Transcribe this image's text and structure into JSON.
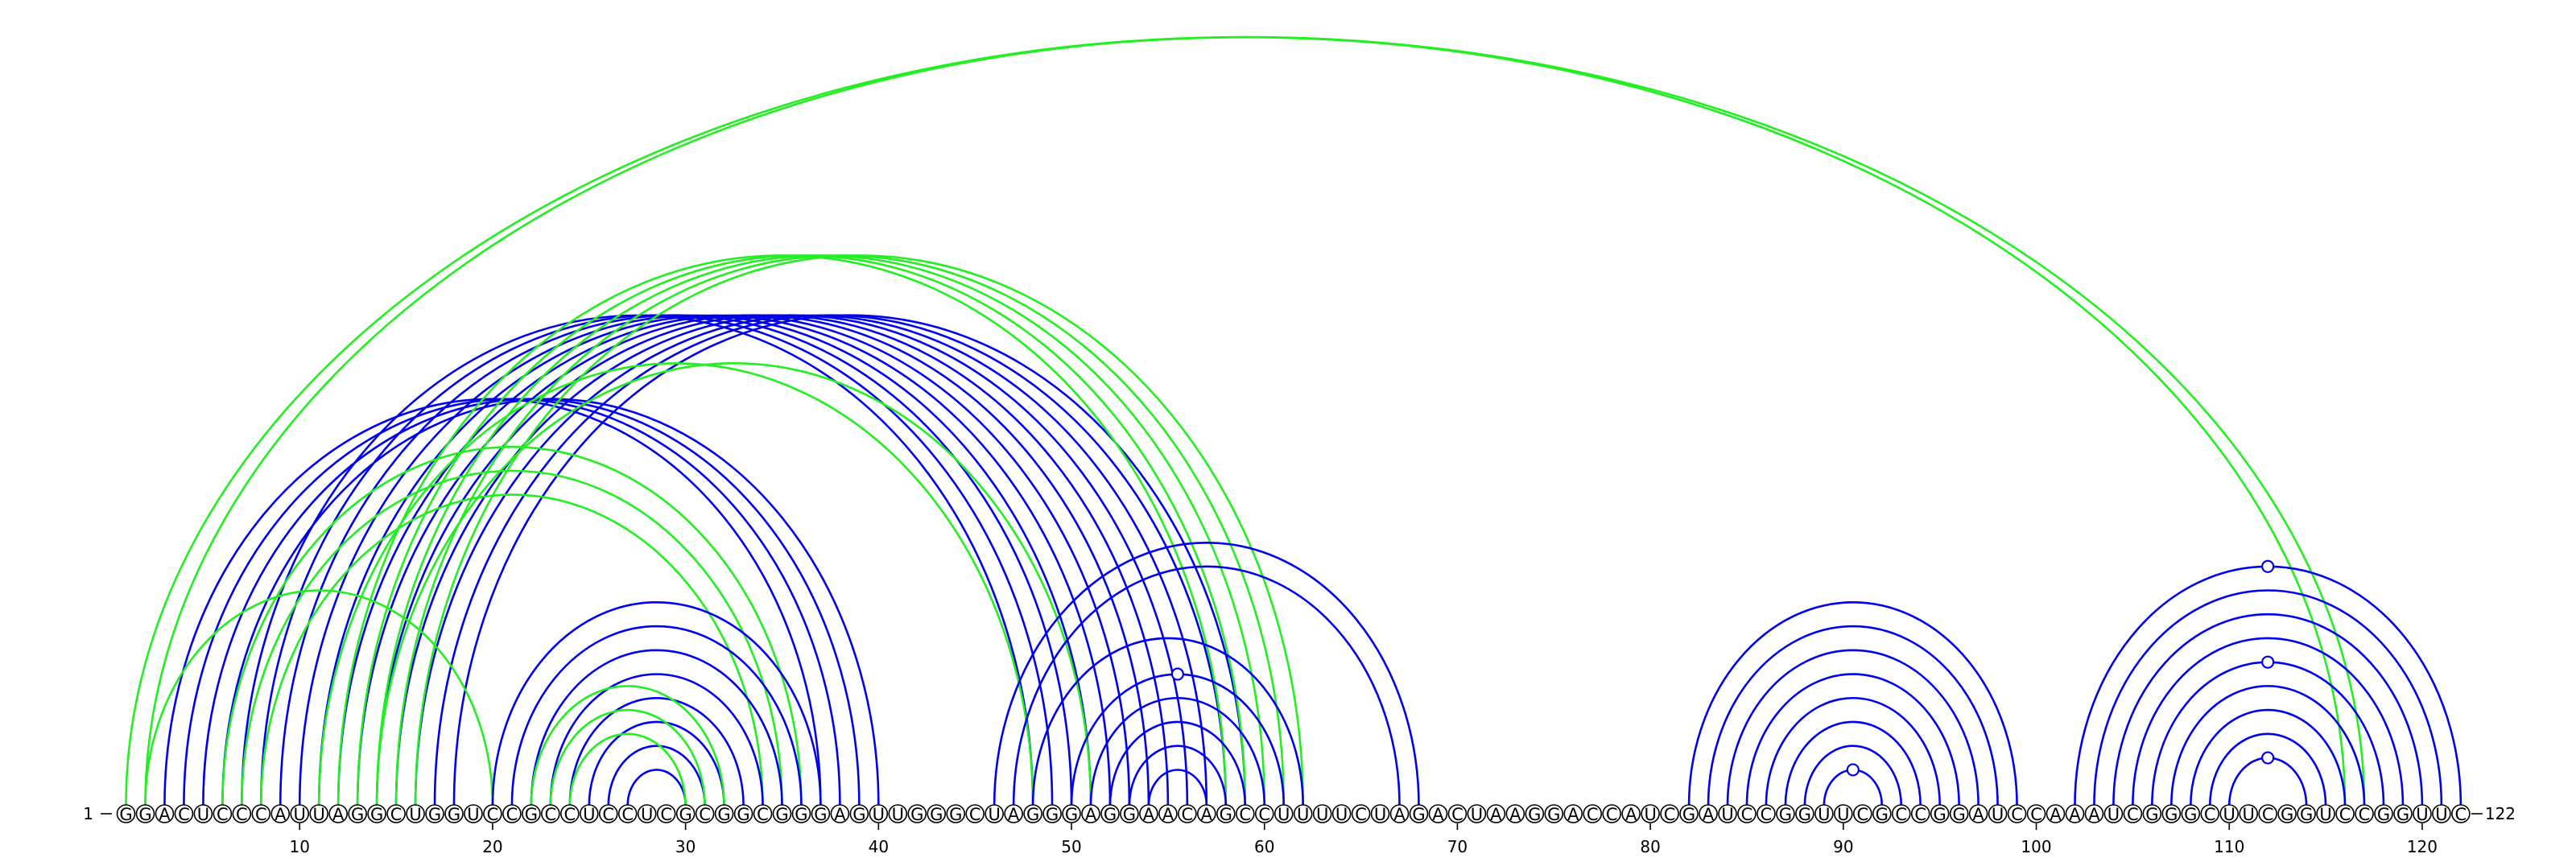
{
  "sequence": "GGACUCCCAUUAGGCUGGUCCGCCUCCUCGCGGCGGGAGUUGGGCUAGGGAGGAACAGCCUUUUCUAGACUAAGGACCAUCGAUCCGGUUCGCCGGAUCCAAAUCGGGCUUCGGUCCGGUUC",
  "start_label": "1",
  "end_label": "122",
  "tick_labels": [
    "10",
    "20",
    "30",
    "40",
    "50",
    "60",
    "70",
    "80",
    "90",
    "100",
    "110",
    "120"
  ],
  "tick_positions": [
    10,
    20,
    30,
    40,
    50,
    60,
    70,
    80,
    90,
    100,
    110,
    120
  ],
  "colors": {
    "blue": "#0000ee",
    "green": "#22ee22",
    "text": "#000000",
    "background": "#ffffff"
  },
  "arcs": [
    {
      "i": 1,
      "j": 117,
      "color": "green"
    },
    {
      "i": 2,
      "j": 116,
      "color": "green"
    },
    {
      "i": 3,
      "j": 37,
      "color": "blue"
    },
    {
      "i": 4,
      "j": 38,
      "color": "blue"
    },
    {
      "i": 5,
      "j": 39,
      "color": "blue"
    },
    {
      "i": 6,
      "j": 40,
      "color": "blue"
    },
    {
      "i": 7,
      "j": 48,
      "color": "blue"
    },
    {
      "i": 8,
      "j": 49,
      "color": "blue"
    },
    {
      "i": 9,
      "j": 50,
      "color": "blue"
    },
    {
      "i": 10,
      "j": 51,
      "color": "blue"
    },
    {
      "i": 11,
      "j": 52,
      "color": "blue"
    },
    {
      "i": 12,
      "j": 53,
      "color": "blue"
    },
    {
      "i": 13,
      "j": 54,
      "color": "blue"
    },
    {
      "i": 14,
      "j": 55,
      "color": "blue"
    },
    {
      "i": 15,
      "j": 56,
      "color": "blue"
    },
    {
      "i": 16,
      "j": 57,
      "color": "blue"
    },
    {
      "i": 17,
      "j": 58,
      "color": "blue"
    },
    {
      "i": 18,
      "j": 59,
      "color": "blue"
    },
    {
      "i": 6,
      "j": 36,
      "color": "green"
    },
    {
      "i": 7,
      "j": 35,
      "color": "green"
    },
    {
      "i": 8,
      "j": 34,
      "color": "green"
    },
    {
      "i": 2,
      "j": 20,
      "color": "green"
    },
    {
      "i": 12,
      "j": 58,
      "color": "green"
    },
    {
      "i": 13,
      "j": 59,
      "color": "green"
    },
    {
      "i": 14,
      "j": 60,
      "color": "green"
    },
    {
      "i": 15,
      "j": 61,
      "color": "green"
    },
    {
      "i": 16,
      "j": 62,
      "color": "green"
    },
    {
      "i": 11,
      "j": 48,
      "color": "green"
    },
    {
      "i": 14,
      "j": 51,
      "color": "green"
    },
    {
      "i": 20,
      "j": 37,
      "color": "blue"
    },
    {
      "i": 21,
      "j": 36,
      "color": "blue"
    },
    {
      "i": 22,
      "j": 35,
      "color": "blue"
    },
    {
      "i": 23,
      "j": 34,
      "color": "blue"
    },
    {
      "i": 24,
      "j": 33,
      "color": "blue"
    },
    {
      "i": 25,
      "j": 32,
      "color": "blue"
    },
    {
      "i": 26,
      "j": 31,
      "color": "blue"
    },
    {
      "i": 27,
      "j": 30,
      "color": "blue"
    },
    {
      "i": 22,
      "j": 32,
      "color": "green"
    },
    {
      "i": 23,
      "j": 31,
      "color": "green"
    },
    {
      "i": 24,
      "j": 30,
      "color": "green"
    },
    {
      "i": 46,
      "j": 68,
      "color": "blue"
    },
    {
      "i": 47,
      "j": 67,
      "color": "blue"
    },
    {
      "i": 48,
      "j": 62,
      "color": "blue"
    },
    {
      "i": 50,
      "j": 61,
      "color": "blue"
    },
    {
      "i": 51,
      "j": 60,
      "color": "blue"
    },
    {
      "i": 52,
      "j": 59,
      "color": "blue"
    },
    {
      "i": 53,
      "j": 58,
      "color": "blue"
    },
    {
      "i": 54,
      "j": 57,
      "color": "blue"
    },
    {
      "i": 82,
      "j": 99,
      "color": "blue"
    },
    {
      "i": 83,
      "j": 98,
      "color": "blue"
    },
    {
      "i": 84,
      "j": 97,
      "color": "blue"
    },
    {
      "i": 85,
      "j": 96,
      "color": "blue"
    },
    {
      "i": 86,
      "j": 95,
      "color": "blue"
    },
    {
      "i": 87,
      "j": 94,
      "color": "blue"
    },
    {
      "i": 88,
      "j": 93,
      "color": "blue"
    },
    {
      "i": 89,
      "j": 92,
      "color": "blue"
    },
    {
      "i": 102,
      "j": 122,
      "color": "blue"
    },
    {
      "i": 103,
      "j": 121,
      "color": "blue"
    },
    {
      "i": 104,
      "j": 120,
      "color": "blue"
    },
    {
      "i": 105,
      "j": 119,
      "color": "blue"
    },
    {
      "i": 106,
      "j": 118,
      "color": "blue"
    },
    {
      "i": 107,
      "j": 117,
      "color": "blue"
    },
    {
      "i": 108,
      "j": 116,
      "color": "blue"
    },
    {
      "i": 109,
      "j": 115,
      "color": "blue"
    },
    {
      "i": 110,
      "j": 114,
      "color": "blue"
    }
  ],
  "noncanonical_markers": [
    {
      "i": 50,
      "j": 61,
      "color": "blue"
    },
    {
      "i": 89,
      "j": 92,
      "color": "blue"
    },
    {
      "i": 102,
      "j": 122,
      "color": "blue"
    },
    {
      "i": 106,
      "j": 118,
      "color": "blue"
    },
    {
      "i": 110,
      "j": 114,
      "color": "blue"
    }
  ]
}
